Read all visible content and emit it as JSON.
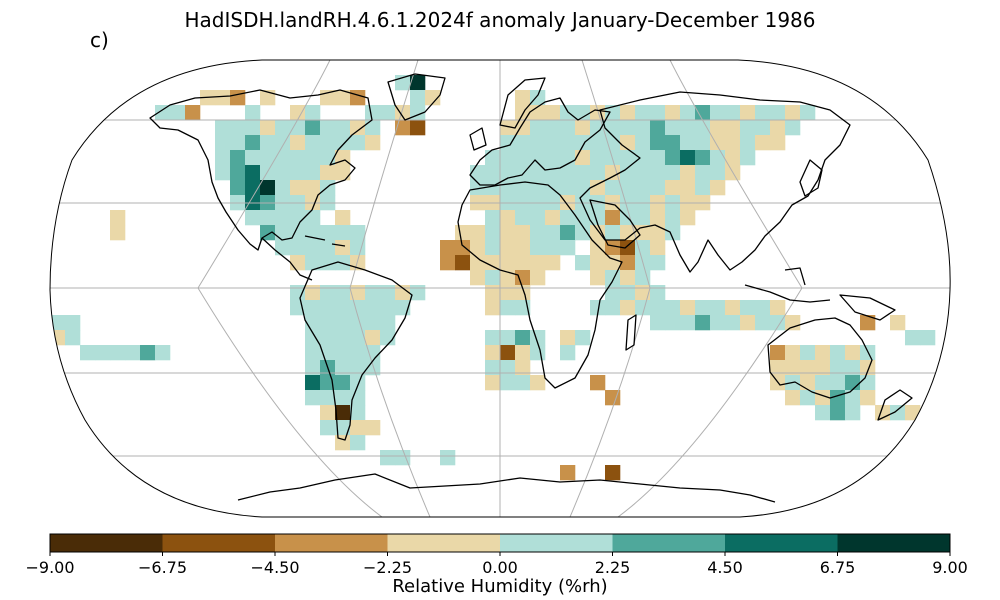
{
  "title": "HadISDH.landRH.4.6.1.2024f anomaly January-December 1986",
  "panel_label": "c)",
  "colorbar": {
    "label": "Relative Humidity (%rh)",
    "ticks": [
      "−9.00",
      "−6.75",
      "−4.50",
      "−2.25",
      "0.00",
      "2.25",
      "4.50",
      "6.75",
      "9.00"
    ],
    "colors": [
      "#4a2c07",
      "#8c520f",
      "#c8914a",
      "#ead8a8",
      "#b0dfd8",
      "#4fa89b",
      "#0b6d62",
      "#00362d"
    ]
  },
  "projection": "robinson",
  "graticule": true,
  "colors": {
    "coast": "#000000",
    "graticule": "#b0b0b0",
    "outline": "#000000"
  }
}
